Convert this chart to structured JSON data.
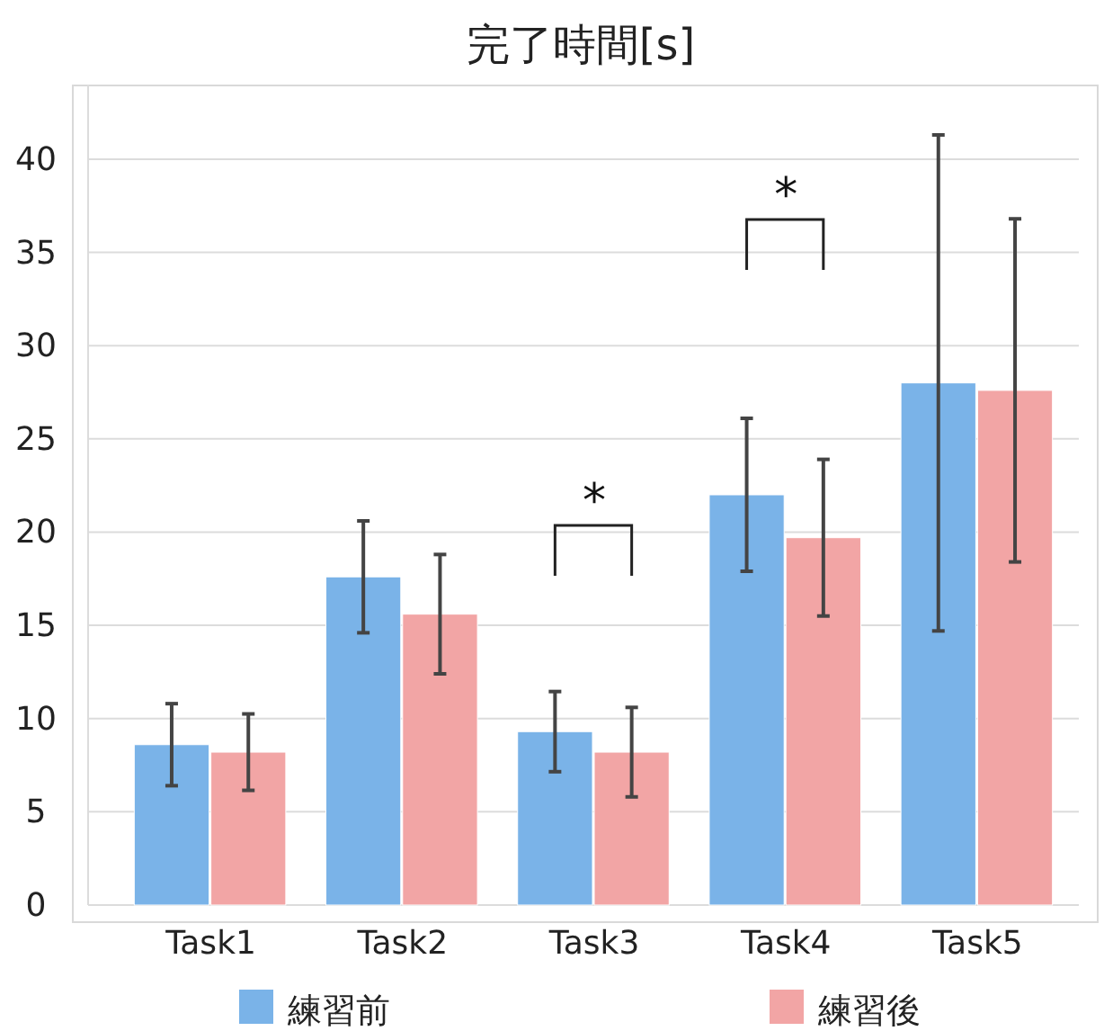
{
  "chart_data": {
    "type": "bar",
    "title": "完了時間[s]",
    "categories": [
      "Task1",
      "Task2",
      "Task3",
      "Task4",
      "Task5"
    ],
    "series": [
      {
        "name": "練習前",
        "color": "#7ab3e8",
        "values": [
          8.6,
          17.6,
          9.3,
          22.0,
          28.0
        ],
        "errors": [
          2.2,
          3.0,
          2.15,
          4.1,
          13.3
        ]
      },
      {
        "name": "練習後",
        "color": "#f2a5a5",
        "values": [
          8.2,
          15.6,
          8.2,
          19.7,
          27.6
        ],
        "errors": [
          2.05,
          3.2,
          2.4,
          4.2,
          9.2
        ]
      }
    ],
    "ylim": [
      0,
      44
    ],
    "yticks": [
      0,
      5,
      10,
      15,
      20,
      25,
      30,
      35,
      40
    ],
    "grid": "y",
    "legend": "bottom",
    "annotations": [
      "*",
      "*"
    ]
  }
}
